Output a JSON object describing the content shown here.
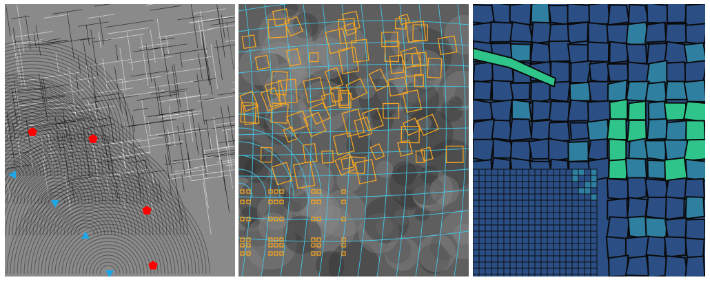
{
  "figure": {
    "panels": [
      {
        "id": "cross-field-streamlines",
        "style": "grayscale line-integral-convolution texture"
      },
      {
        "id": "quad-layout-overlay",
        "style": "streamlines with square frames"
      },
      {
        "id": "quad-mesh-result",
        "style": "quad mesh colored by element size"
      }
    ],
    "colors": {
      "singularity_positive": "#ff0000",
      "singularity_negative": "#1ea6e6",
      "streamline": "#44c8e8",
      "frame": "#f5a623",
      "mesh_edge": "#0a0a0a",
      "mesh_dark": "#2b4f85",
      "mesh_mid": "#2f7fa0",
      "mesh_light": "#2fc48a"
    },
    "markers": {
      "red_pentagons": 4,
      "blue_arrows": 4
    }
  }
}
